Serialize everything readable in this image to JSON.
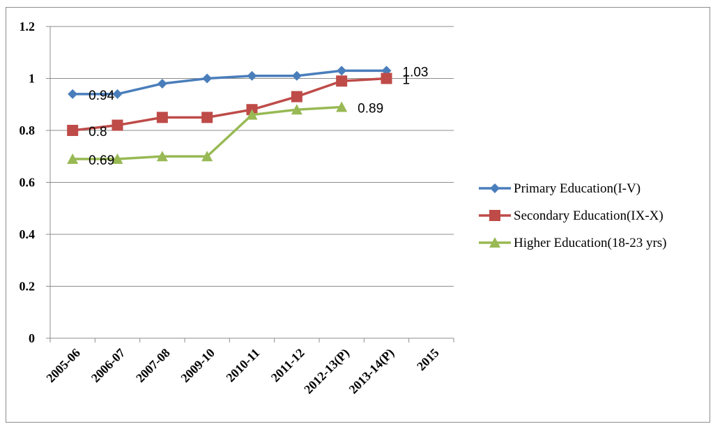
{
  "chart_data": {
    "type": "line",
    "categories": [
      "2005-06",
      "2006-07",
      "2007-08",
      "2009-10",
      "2010-11",
      "2011-12",
      "2012-13(P)",
      "2013-14(P)",
      "2015"
    ],
    "ylim": [
      0,
      1.2
    ],
    "yticks": [
      "0",
      "0.2",
      "0.4",
      "0.6",
      "0.8",
      "1",
      "1.2"
    ],
    "grid": true,
    "legend_position": "right",
    "series": [
      {
        "name": "Primary Education(I-V)",
        "color": "#4a7ebb",
        "marker": "diamond",
        "values": [
          0.94,
          0.94,
          0.98,
          1.0,
          1.01,
          1.01,
          1.03,
          1.03,
          null
        ],
        "labels": [
          {
            "index": 0,
            "text": "0.94"
          },
          {
            "index": 7,
            "text": "1.03"
          }
        ]
      },
      {
        "name": "Secondary Education(IX-X)",
        "color": "#be4b48",
        "marker": "square",
        "values": [
          0.8,
          0.82,
          0.85,
          0.85,
          0.88,
          0.93,
          0.99,
          1.0,
          null
        ],
        "labels": [
          {
            "index": 0,
            "text": "0.8"
          },
          {
            "index": 7,
            "text": "1"
          }
        ]
      },
      {
        "name": "Higher Education(18-23 yrs)",
        "color": "#98b954",
        "marker": "triangle",
        "values": [
          0.69,
          0.69,
          0.7,
          0.7,
          0.86,
          0.88,
          0.89,
          null,
          null
        ],
        "labels": [
          {
            "index": 0,
            "text": "0.69"
          },
          {
            "index": 6,
            "text": "0.89"
          }
        ]
      }
    ]
  }
}
